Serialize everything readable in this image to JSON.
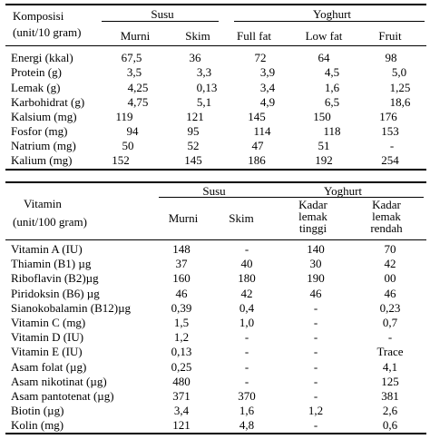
{
  "table1": {
    "header": {
      "corner_line1": "Komposisi",
      "corner_line2": "(unit/10 gram)",
      "group_susu": "Susu",
      "group_yoghurt": "Yoghurt",
      "columns": [
        "Murni",
        "Skim",
        "Full fat",
        "Low fat",
        "Fruit"
      ]
    },
    "rows": [
      {
        "label": "Energi (kkal)",
        "values": [
          "67,5",
          "36",
          "72",
          "64",
          "98"
        ]
      },
      {
        "label": "Protein (g)",
        "values": [
          "3,5",
          "3,3",
          "3,9",
          "4,5",
          "5,0"
        ]
      },
      {
        "label": "Lemak (g)",
        "values": [
          "4,25",
          "0,13",
          "3,4",
          "1,6",
          "1,25"
        ]
      },
      {
        "label": "Karbohidrat (g)",
        "values": [
          "4,75",
          "5,1",
          "4,9",
          "6,5",
          "18,6"
        ]
      },
      {
        "label": "Kalsium (mg)",
        "values": [
          "119",
          "121",
          "145",
          "150",
          "176"
        ]
      },
      {
        "label": "Fosfor (mg)",
        "values": [
          "94",
          "95",
          "114",
          "118",
          "153"
        ]
      },
      {
        "label": "Natrium (mg)",
        "values": [
          "50",
          "52",
          "47",
          "51",
          "-"
        ]
      },
      {
        "label": "Kalium (mg)",
        "values": [
          "152",
          "145",
          "186",
          "192",
          "254"
        ]
      }
    ]
  },
  "table2": {
    "header": {
      "corner_line1": "Vitamin",
      "corner_line2": "(unit/100 gram)",
      "group_susu": "Susu",
      "group_yoghurt": "Yoghurt",
      "col_murni": "Murni",
      "col_skim": "Skim",
      "col_tinggi": [
        "Kadar",
        "lemak",
        "tinggi"
      ],
      "col_rendah": [
        "Kadar",
        "lemak",
        "rendah"
      ]
    },
    "rows": [
      {
        "label": "Vitamin A (IU)",
        "values": [
          "148",
          "-",
          "140",
          "70"
        ]
      },
      {
        "label": "Thiamin (B1) µg",
        "values": [
          "37",
          "40",
          "30",
          "42"
        ]
      },
      {
        "label": "Riboflavin (B2)µg",
        "values": [
          "160",
          "180",
          "190",
          "00"
        ]
      },
      {
        "label": "Piridoksin (B6) µg",
        "values": [
          "46",
          "42",
          "46",
          "46"
        ]
      },
      {
        "label": "Sianokobalamin (B12)µg",
        "values": [
          "0,39",
          "0,4",
          "-",
          "0,23"
        ]
      },
      {
        "label": "Vitamin C (mg)",
        "values": [
          "1,5",
          "1,0",
          "-",
          "0,7"
        ]
      },
      {
        "label": "Vitamin D (IU)",
        "values": [
          "1,2",
          "-",
          "-",
          "-"
        ]
      },
      {
        "label": "Vitamin E (IU)",
        "values": [
          "0,13",
          "-",
          "-",
          "Trace"
        ]
      },
      {
        "label": "Asam folat (µg)",
        "values": [
          "0,25",
          "-",
          "-",
          "4,1"
        ]
      },
      {
        "label": "Asam nikotinat (µg)",
        "values": [
          "480",
          "-",
          "-",
          "125"
        ]
      },
      {
        "label": "Asam pantotenat (µg)",
        "values": [
          "371",
          "370",
          "-",
          "381"
        ]
      },
      {
        "label": "Biotin (µg)",
        "values": [
          "3,4",
          "1,6",
          "1,2",
          "2,6"
        ]
      },
      {
        "label": "Kolin (mg)",
        "values": [
          "121",
          "4,8",
          "-",
          "0,6"
        ]
      }
    ]
  }
}
